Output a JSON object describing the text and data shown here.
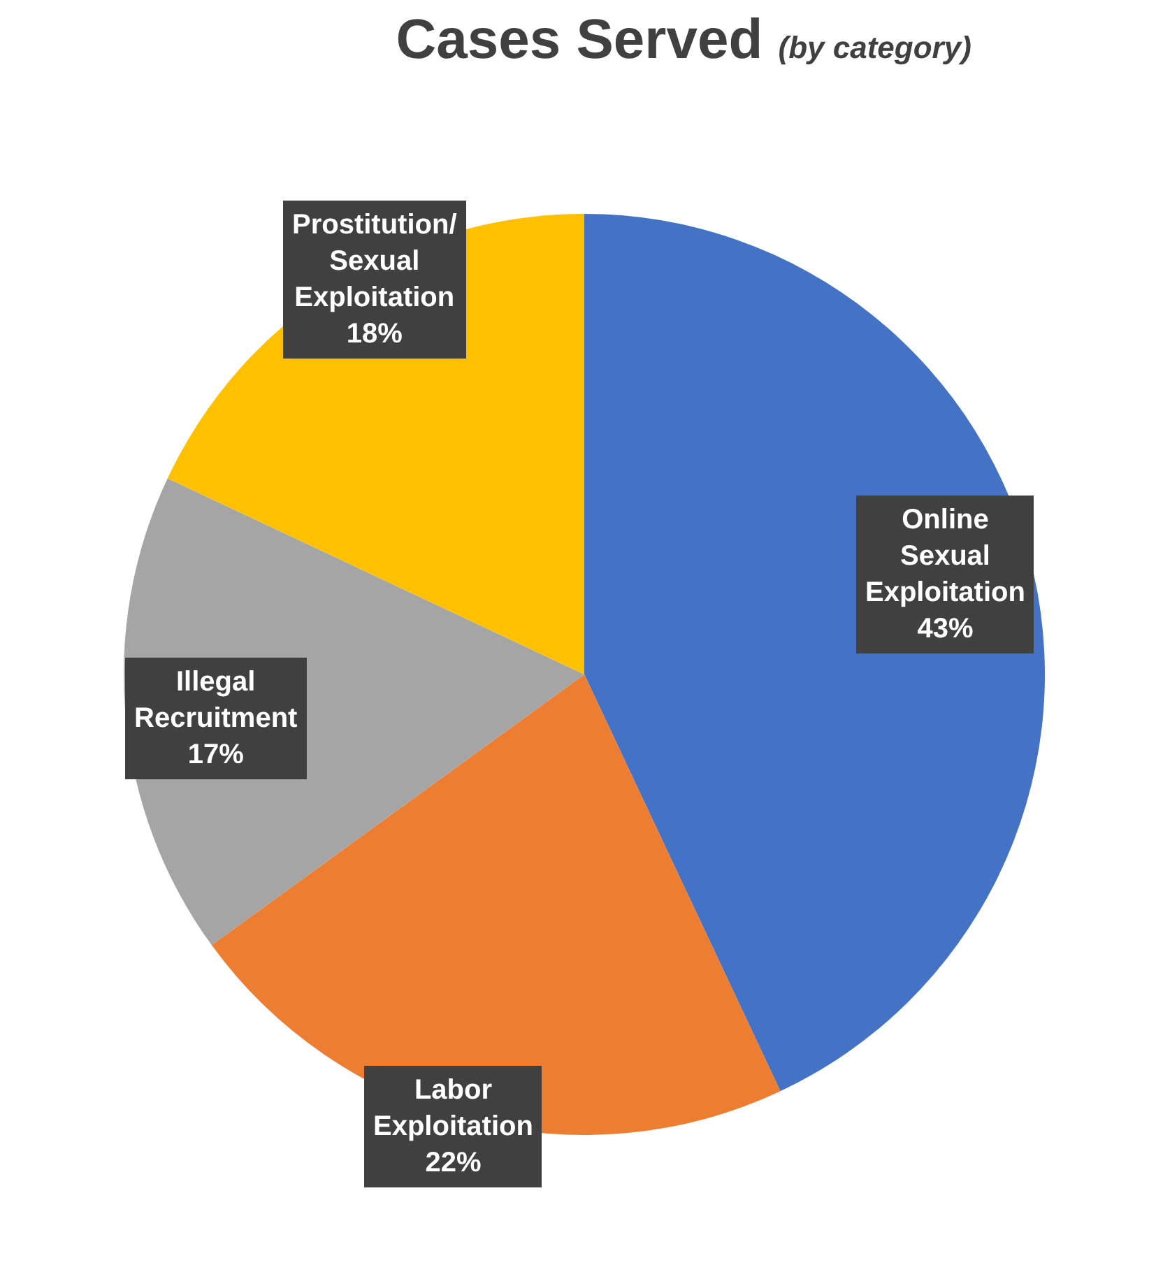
{
  "chart_data": {
    "type": "pie",
    "title": "Cases Served",
    "subtitle": "(by category)",
    "categories": [
      "Online Sexual Exploitation",
      "Labor Exploitation",
      "Illegal Recruitment",
      "Prostitution/Sexual Exploitation"
    ],
    "values": [
      43,
      22,
      17,
      18
    ],
    "colors": [
      "#4472c4",
      "#ed7d31",
      "#a5a5a5",
      "#ffc000"
    ],
    "value_labels": [
      "43%",
      "22%",
      "17%",
      "18%"
    ],
    "legend": false
  }
}
